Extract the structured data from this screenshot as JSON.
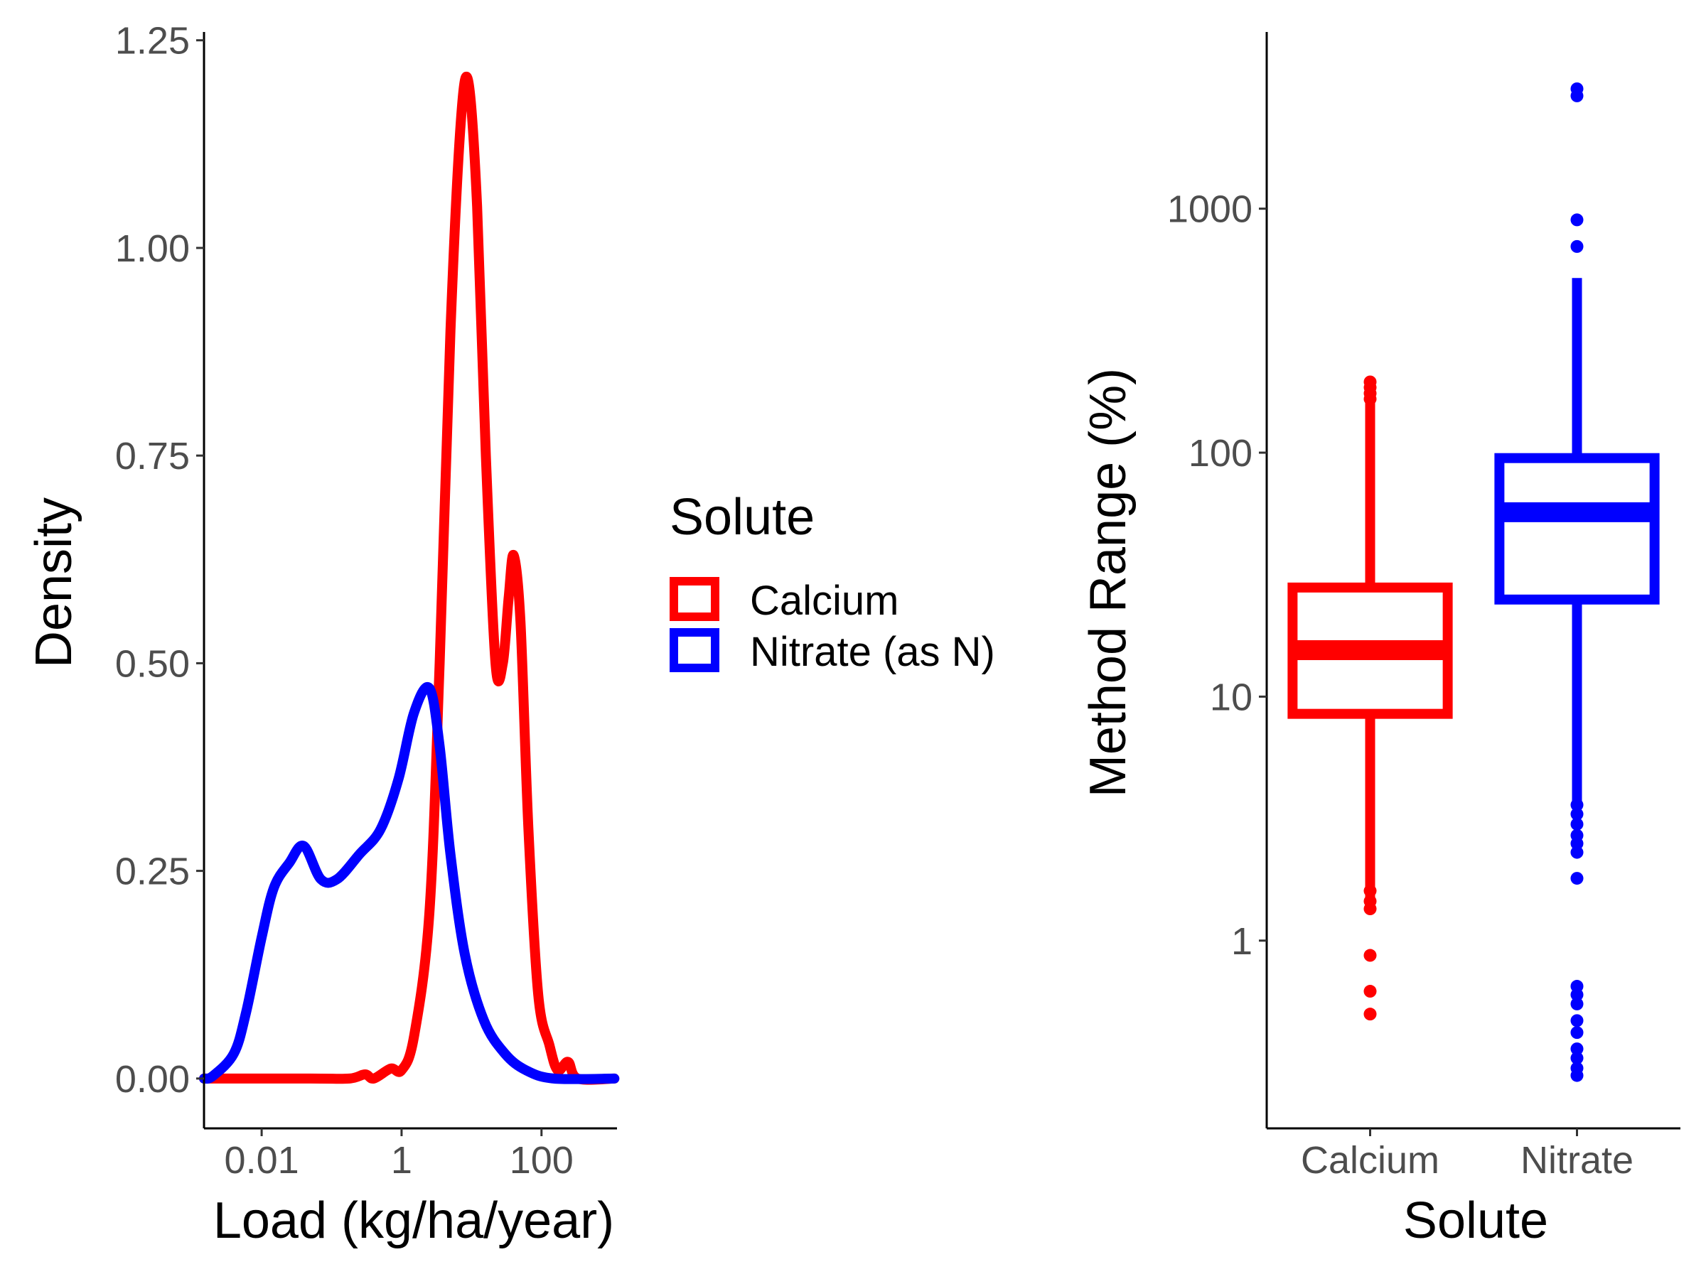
{
  "colors": {
    "Calcium": "#ff0000",
    "Nitrate (as N)": "#0000ff",
    "Nitrate": "#0000ff",
    "axis": "#000000",
    "tick_text": "#4d4d4d"
  },
  "chart_data": [
    {
      "type": "line",
      "subtype": "density",
      "xlabel": "Load (kg/ha/year)",
      "ylabel": "Density",
      "x_scale": "log10",
      "xlim": [
        0.0015,
        1200
      ],
      "ylim": [
        -0.06,
        1.26
      ],
      "x_ticks": [
        0.01,
        1,
        100
      ],
      "x_tick_labels": [
        "0.01",
        "1",
        "100"
      ],
      "y_ticks": [
        0,
        0.25,
        0.5,
        0.75,
        1.0,
        1.25
      ],
      "y_tick_labels": [
        "0.00",
        "0.25",
        "0.50",
        "0.75",
        "1.00",
        "1.25"
      ],
      "grid": false,
      "legend": {
        "title": "Solute",
        "position": "right",
        "entries": [
          "Calcium",
          "Nitrate (as N)"
        ]
      },
      "series": [
        {
          "name": "Calcium",
          "points": [
            [
              0.0015,
              0.0
            ],
            [
              0.05,
              0.0
            ],
            [
              0.18,
              0.0
            ],
            [
              0.3,
              0.005
            ],
            [
              0.4,
              0.0
            ],
            [
              0.7,
              0.012
            ],
            [
              1.0,
              0.01
            ],
            [
              1.5,
              0.05
            ],
            [
              2.5,
              0.2
            ],
            [
              3.5,
              0.5
            ],
            [
              5.0,
              0.9
            ],
            [
              7.0,
              1.15
            ],
            [
              9.0,
              1.2
            ],
            [
              12.0,
              1.05
            ],
            [
              16.0,
              0.75
            ],
            [
              22.0,
              0.5
            ],
            [
              28.0,
              0.5
            ],
            [
              34.0,
              0.58
            ],
            [
              40.0,
              0.63
            ],
            [
              50.0,
              0.55
            ],
            [
              65.0,
              0.3
            ],
            [
              90.0,
              0.1
            ],
            [
              130.0,
              0.04
            ],
            [
              170.0,
              0.01
            ],
            [
              240.0,
              0.02
            ],
            [
              330.0,
              0.0
            ],
            [
              1100.0,
              0.0
            ]
          ]
        },
        {
          "name": "Nitrate (as N)",
          "points": [
            [
              0.0015,
              0.0
            ],
            [
              0.002,
              0.003
            ],
            [
              0.004,
              0.03
            ],
            [
              0.006,
              0.08
            ],
            [
              0.01,
              0.17
            ],
            [
              0.015,
              0.23
            ],
            [
              0.025,
              0.26
            ],
            [
              0.04,
              0.28
            ],
            [
              0.07,
              0.24
            ],
            [
              0.12,
              0.24
            ],
            [
              0.25,
              0.27
            ],
            [
              0.5,
              0.3
            ],
            [
              0.9,
              0.36
            ],
            [
              1.5,
              0.44
            ],
            [
              2.5,
              0.47
            ],
            [
              3.5,
              0.4
            ],
            [
              5.0,
              0.27
            ],
            [
              8.0,
              0.15
            ],
            [
              15.0,
              0.07
            ],
            [
              30.0,
              0.03
            ],
            [
              60.0,
              0.01
            ],
            [
              150.0,
              0.0
            ],
            [
              1100.0,
              0.0
            ]
          ]
        }
      ]
    },
    {
      "type": "box",
      "xlabel": "Solute",
      "ylabel": "Method Range (%)",
      "y_scale": "log10",
      "ylim": [
        0.17,
        5300
      ],
      "y_ticks": [
        1,
        10,
        100,
        1000
      ],
      "y_tick_labels": [
        "1",
        "10",
        "100",
        "1000"
      ],
      "categories": [
        "Calcium",
        "Nitrate"
      ],
      "grid": false,
      "boxes": [
        {
          "category": "Calcium",
          "lower_whisker": 1.35,
          "q1": 8.5,
          "median": 15.5,
          "q3": 28,
          "upper_whisker": 165,
          "outliers": [
            0.5,
            0.62,
            0.87,
            1.35,
            1.45,
            1.6,
            166,
            175,
            185,
            195
          ]
        },
        {
          "category": "Nitrate",
          "lower_whisker": 3.7,
          "q1": 25,
          "median": 57,
          "q3": 95,
          "upper_whisker": 520,
          "outliers": [
            0.28,
            0.3,
            0.33,
            0.36,
            0.42,
            0.47,
            0.55,
            0.6,
            0.65,
            1.8,
            2.3,
            2.5,
            2.7,
            3.0,
            3.3,
            3.6,
            700,
            900,
            2900,
            3100
          ]
        }
      ]
    }
  ]
}
